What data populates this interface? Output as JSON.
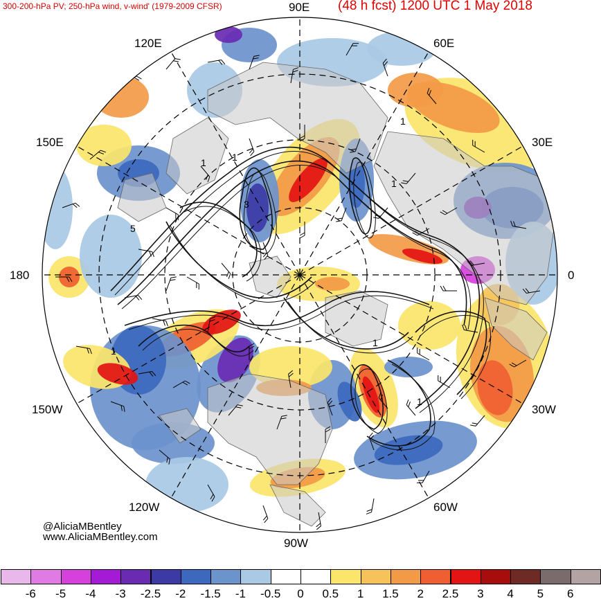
{
  "header": {
    "product_title": "300-200-hPa PV; 250-hPa wind, v-wind' (1979-2009 CFSR)",
    "forecast_valid": "(48 h fcst) 1200 UTC 1 May 2018"
  },
  "map": {
    "projection": "north polar stereographic",
    "longitude_labels": {
      "e90": "90E",
      "e60": "60E",
      "e30": "30E",
      "e0": "0",
      "w30": "30W",
      "w60": "60W",
      "w90": "90W",
      "w120": "120W",
      "w150": "150W",
      "w180": "180",
      "e150": "150E",
      "e120": "120E"
    },
    "pv_contour_labels": [
      "1",
      "1",
      "1",
      "3",
      "5",
      "1",
      "1",
      "1",
      "1"
    ]
  },
  "credits": {
    "handle": "@AliciaMBentley",
    "website": "www.AliciaMBentley.com"
  },
  "colorbar": {
    "variable": "v-wind anomaly",
    "bins": [
      {
        "color": "#e9b7ea"
      },
      {
        "color": "#e07be3"
      },
      {
        "color": "#d640dd"
      },
      {
        "color": "#a51ad4"
      },
      {
        "color": "#6a2ab2"
      },
      {
        "color": "#3c3ba6"
      },
      {
        "color": "#3c69bd"
      },
      {
        "color": "#6b93cc"
      },
      {
        "color": "#a9c9e5"
      },
      {
        "color": "#ffffff"
      },
      {
        "color": "#ffffff"
      },
      {
        "color": "#fbe56a"
      },
      {
        "color": "#f6c35a"
      },
      {
        "color": "#f39a47"
      },
      {
        "color": "#ef5f31"
      },
      {
        "color": "#e31414"
      },
      {
        "color": "#a70d0d"
      },
      {
        "color": "#6e2a24"
      },
      {
        "color": "#7a6c6c"
      },
      {
        "color": "#b4a3a3"
      }
    ],
    "tick_labels": [
      "-6",
      "-5",
      "-4",
      "-3",
      "-2.5",
      "-2",
      "-1.5",
      "-1",
      "-0.5",
      "0",
      "0.5",
      "1",
      "1.5",
      "2",
      "2.5",
      "3",
      "4",
      "5",
      "6"
    ]
  }
}
